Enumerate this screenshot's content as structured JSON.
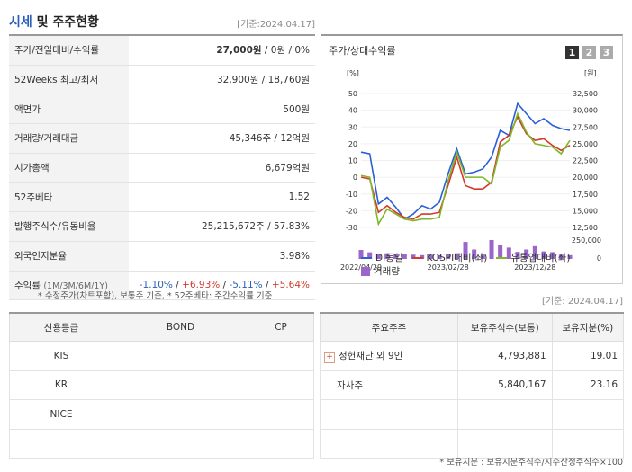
{
  "header": {
    "title_accent": "시세",
    "title_rest": " 및 주주현황",
    "base_date": "[기준:2024.04.17]"
  },
  "quote_rows": [
    {
      "label": "주가/전일대비/수익률",
      "value": "27,000원 / 0원 / 0%"
    },
    {
      "label": "52Weeks 최고/최저",
      "value": "32,900원 / 18,760원"
    },
    {
      "label": "액면가",
      "value": "500원"
    },
    {
      "label": "거래량/거래대금",
      "value": "45,346주 / 12억원"
    },
    {
      "label": "시가총액",
      "value": "6,679억원"
    },
    {
      "label": "52주베타",
      "value": "1.52"
    },
    {
      "label": "발행주식수/유동비율",
      "value": "25,215,672주 / 57.83%"
    },
    {
      "label": "외국인지분율",
      "value": "3.98%"
    }
  ],
  "price_main": "27,000원",
  "price_rest": " / 0원 / 0%",
  "returns": {
    "label": "수익률",
    "sub": "(1M/3M/6M/1Y)",
    "values": [
      "-1.10%",
      "+6.93%",
      "-5.11%",
      "+5.64%"
    ]
  },
  "note_left": "* 수정주가(차트포함), 보통주 기준, * 52주베타: 주간수익률 기준",
  "chart_panel": {
    "title": "주가/상대수익률",
    "tabs": [
      "1",
      "2",
      "3"
    ],
    "left_unit": "[%]",
    "right_unit": "[원]"
  },
  "chart_data": {
    "type": "line",
    "x": [
      "2022/04/29",
      "2022/05",
      "2022/06",
      "2022/07",
      "2022/08",
      "2022/09",
      "2022/10",
      "2022/11",
      "2022/12",
      "2023/01",
      "2023/02",
      "2023/03",
      "2023/04",
      "2023/05",
      "2023/06",
      "2023/07",
      "2023/08",
      "2023/09",
      "2023/10",
      "2023/11",
      "2023/12",
      "2024/01",
      "2024/02",
      "2024/03",
      "2024/04"
    ],
    "xticks": [
      "2022/04/29",
      "2023/02/28",
      "2023/12/28"
    ],
    "ylim_left": [
      -30,
      50
    ],
    "yticks_left": [
      50,
      40,
      30,
      20,
      10,
      0,
      -10,
      -20,
      -30
    ],
    "ylim_right": [
      12500,
      32500
    ],
    "yticks_right": [
      "32,500",
      "30,000",
      "27,500",
      "25,000",
      "22,500",
      "20,000",
      "17,500",
      "15,000",
      "12,500"
    ],
    "volume_ticks": [
      "250,000",
      "0"
    ],
    "series": [
      {
        "name": "DI동일",
        "color": "#2a5fd8",
        "values": [
          15,
          14,
          -16,
          -12,
          -18,
          -25,
          -22,
          -17,
          -19,
          -15,
          2,
          17,
          2,
          3,
          5,
          12,
          28,
          25,
          44,
          38,
          32,
          35,
          31,
          29,
          28
        ]
      },
      {
        "name": "KOSPI대비(좌)",
        "color": "#d23a2a",
        "values": [
          0,
          -1,
          -21,
          -17,
          -21,
          -24,
          -25,
          -22,
          -22,
          -21,
          -5,
          12,
          -5,
          -7,
          -7,
          -3,
          21,
          25,
          36,
          26,
          22,
          23,
          19,
          16,
          19
        ]
      },
      {
        "name": "유통업대비(좌)",
        "color": "#7fb62a",
        "values": [
          1,
          0,
          -28,
          -19,
          -22,
          -25,
          -26,
          -25,
          -25,
          -24,
          -2,
          15,
          0,
          0,
          0,
          -4,
          18,
          22,
          38,
          27,
          20,
          19,
          18,
          14,
          22
        ]
      }
    ],
    "volume_series": {
      "name": "거래량",
      "color": "#9a66cc",
      "values": [
        95,
        70,
        55,
        60,
        55,
        50,
        45,
        40,
        45,
        40,
        48,
        60,
        180,
        100,
        45,
        200,
        145,
        120,
        75,
        100,
        135,
        80,
        72,
        45,
        40
      ]
    }
  },
  "credit": {
    "headers": [
      "신용등급",
      "BOND",
      "CP"
    ],
    "rows": [
      [
        "KIS",
        "",
        ""
      ],
      [
        "KR",
        "",
        ""
      ],
      [
        "NICE",
        "",
        ""
      ],
      [
        "",
        "",
        ""
      ]
    ]
  },
  "holders": {
    "base_date": "[기준: 2024.04.17]",
    "headers": [
      "주요주주",
      "보유주식수(보통)",
      "보유지분(%)"
    ],
    "rows": [
      {
        "name": "정헌재단 외 9인",
        "shares": "4,793,881",
        "pct": "19.01",
        "expand": "+"
      },
      {
        "name": "자사주",
        "shares": "5,840,167",
        "pct": "23.16",
        "expand": ""
      }
    ],
    "note": "* 보유지분 : 보유지분주식수/지수산정주식수×100"
  }
}
